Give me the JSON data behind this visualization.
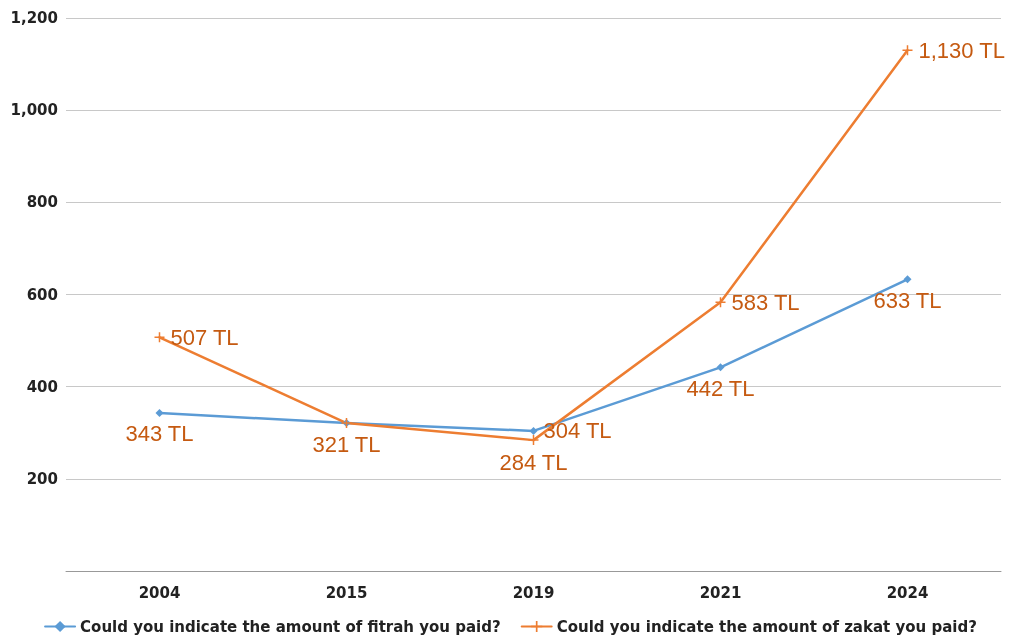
{
  "chart_data": {
    "type": "line",
    "categories": [
      "2004",
      "2015",
      "2019",
      "2021",
      "2024"
    ],
    "series": [
      {
        "name": "Could you indicate the amount of fitrah you paid?",
        "color": "#5b9bd5",
        "marker": "diamond",
        "values": [
          343,
          321,
          304,
          442,
          633
        ],
        "value_labels": [
          "343 TL",
          "321 TL",
          "304 TL",
          "442 TL",
          "633 TL"
        ]
      },
      {
        "name": "Could you indicate the amount of zakat you paid?",
        "color": "#ed7d31",
        "marker": "cross",
        "values": [
          507,
          321,
          284,
          583,
          1130
        ],
        "value_labels": [
          "507 TL",
          null,
          "284 TL",
          "583 TL",
          "1,130 TL"
        ]
      }
    ],
    "ylim": [
      0,
      1200
    ],
    "yticks": [
      {
        "value": 0,
        "label": null
      },
      {
        "value": 200,
        "label": "200"
      },
      {
        "value": 400,
        "label": "400"
      },
      {
        "value": 600,
        "label": "600"
      },
      {
        "value": 800,
        "label": "800"
      },
      {
        "value": 1000,
        "label": "1,000"
      },
      {
        "value": 1200,
        "label": "1,200"
      }
    ],
    "grid": "y",
    "legend": "bottom",
    "line_style": "solid"
  }
}
